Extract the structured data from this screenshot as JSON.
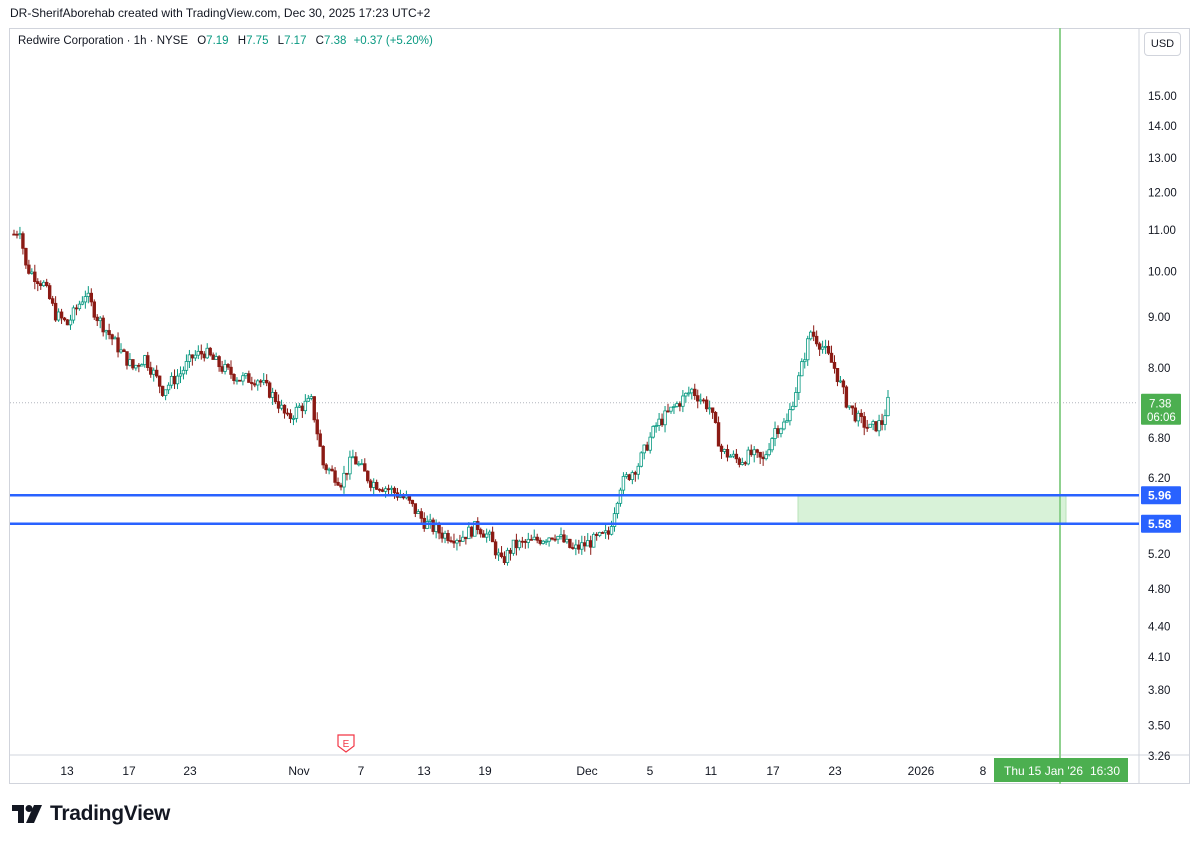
{
  "header": {
    "creator": "DR-SherifAborehab created with TradingView.com, Dec 30, 2025 17:23 UTC+2"
  },
  "legend": {
    "symbol": "Redwire Corporation · 1h · NYSE",
    "open_label": "O",
    "open": "7.19",
    "high_label": "H",
    "high": "7.75",
    "low_label": "L",
    "low": "7.17",
    "close_label": "C",
    "close": "7.38",
    "change": "+0.37 (+5.20%)"
  },
  "currency": "USD",
  "price_badge": {
    "price": "7.38",
    "countdown": "06:06"
  },
  "level_badges": [
    "5.96",
    "5.58"
  ],
  "cursor_label": {
    "date": "Thu 15 Jan '26",
    "time": "16:30"
  },
  "footer": {
    "brand": "TradingView"
  },
  "colors": {
    "up": "#089981",
    "down": "#8b1a14",
    "level": "#2962ff",
    "zone": "#d8f2d8",
    "vline": "#8fd18f",
    "badge_green": "#4caf50"
  },
  "chart_data": {
    "type": "candlestick",
    "title": "Redwire Corporation · 1h · NYSE",
    "y_scale": "log",
    "ylim": [
      3.26,
      16.0
    ],
    "y_ticks": [
      "15.00",
      "14.00",
      "13.00",
      "12.00",
      "11.00",
      "10.00",
      "9.00",
      "8.00",
      "6.80",
      "6.20",
      "5.20",
      "4.80",
      "4.40",
      "4.10",
      "3.80",
      "3.50",
      "3.26"
    ],
    "x_ticks": [
      "13",
      "17",
      "23",
      "Nov",
      "7",
      "13",
      "19",
      "Dec",
      "5",
      "11",
      "17",
      "23",
      "2026",
      "8"
    ],
    "horizontal_levels": [
      5.96,
      5.58
    ],
    "zone": {
      "low": 5.58,
      "high": 5.96
    },
    "last_price": 7.38,
    "earnings_marker": "E",
    "price_path": [
      [
        0,
        10.9
      ],
      [
        1,
        11.05
      ],
      [
        2,
        10.1
      ],
      [
        5,
        9.7
      ],
      [
        7,
        9.05
      ],
      [
        9,
        8.85
      ],
      [
        12,
        9.5
      ],
      [
        14,
        9.0
      ],
      [
        18,
        8.3
      ],
      [
        20,
        8.0
      ],
      [
        22,
        8.2
      ],
      [
        25,
        7.6
      ],
      [
        28,
        7.9
      ],
      [
        30,
        8.2
      ],
      [
        32,
        8.3
      ],
      [
        35,
        8.0
      ],
      [
        38,
        7.8
      ],
      [
        41,
        7.8
      ],
      [
        44,
        7.45
      ],
      [
        46,
        7.1
      ],
      [
        48,
        7.3
      ],
      [
        50,
        7.4
      ],
      [
        52,
        6.4
      ],
      [
        55,
        6.15
      ],
      [
        57,
        6.5
      ],
      [
        60,
        6.15
      ],
      [
        63,
        6.05
      ],
      [
        66,
        5.9
      ],
      [
        69,
        5.6
      ],
      [
        72,
        5.45
      ],
      [
        75,
        5.4
      ],
      [
        78,
        5.55
      ],
      [
        80,
        5.4
      ],
      [
        82,
        5.1
      ],
      [
        84,
        5.3
      ],
      [
        87,
        5.35
      ],
      [
        91,
        5.45
      ],
      [
        94,
        5.25
      ],
      [
        97,
        5.35
      ],
      [
        100,
        5.45
      ],
      [
        102,
        6.1
      ],
      [
        105,
        6.4
      ],
      [
        108,
        7.0
      ],
      [
        111,
        7.3
      ],
      [
        114,
        7.6
      ],
      [
        117,
        7.3
      ],
      [
        119,
        6.6
      ],
      [
        122,
        6.45
      ],
      [
        124,
        6.55
      ],
      [
        126,
        6.45
      ],
      [
        128,
        6.95
      ],
      [
        130,
        7.05
      ],
      [
        132,
        7.8
      ],
      [
        134,
        8.7
      ],
      [
        136,
        8.4
      ],
      [
        138,
        8.0
      ],
      [
        140,
        7.4
      ],
      [
        142,
        7.1
      ],
      [
        144,
        6.95
      ],
      [
        146,
        7.05
      ],
      [
        147,
        7.38
      ]
    ]
  }
}
